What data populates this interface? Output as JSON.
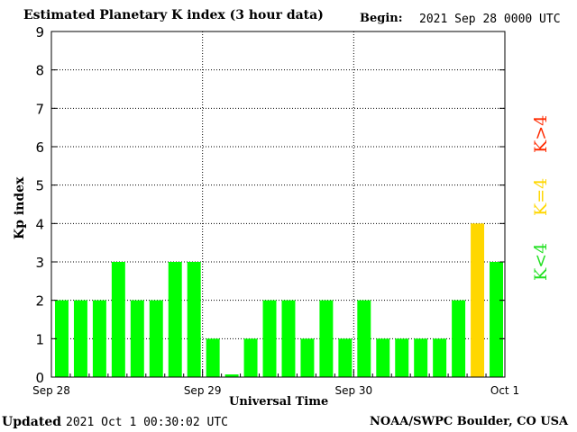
{
  "header": {
    "title": "Estimated Planetary K index (3 hour data)",
    "begin_label": "Begin:",
    "begin_value": "2021 Sep 28 0000 UTC"
  },
  "footer": {
    "updated_label": "Updated",
    "updated_value": "2021 Oct  1 00:30:02 UTC",
    "source": "NOAA/SWPC Boulder, CO USA"
  },
  "legend": {
    "high": "K>4",
    "equal": "K=4",
    "low": "K<4"
  },
  "colors": {
    "low": "#00ff00",
    "equal": "#ffd700",
    "high": "#ff2a00"
  },
  "chart_data": {
    "type": "bar",
    "title": "Estimated Planetary K index (3 hour data)",
    "xlabel": "Universal Time",
    "ylabel": "Kp index",
    "ylim": [
      0,
      9
    ],
    "yticks": [
      0,
      1,
      2,
      3,
      4,
      5,
      6,
      7,
      8,
      9
    ],
    "xtick_labels": [
      "Sep 28",
      "Sep 29",
      "Sep 30",
      "Oct 1"
    ],
    "interval_hours": 3,
    "values": [
      2,
      2,
      2,
      3,
      2,
      2,
      3,
      3,
      1,
      0.07,
      1,
      2,
      2,
      1,
      2,
      1,
      2,
      1,
      1,
      1,
      1,
      2,
      4,
      3
    ],
    "grid": true
  }
}
